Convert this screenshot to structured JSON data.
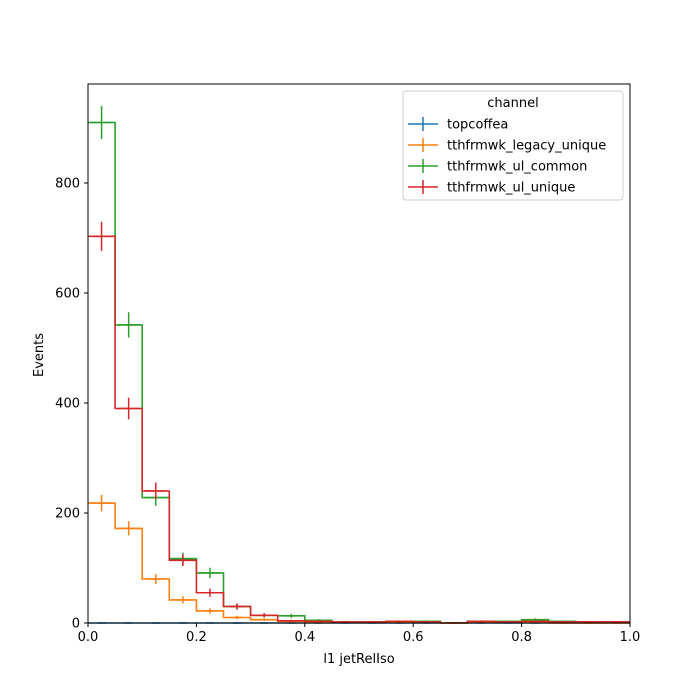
{
  "chart_data": {
    "type": "histogram",
    "title": "",
    "xlabel": "l1 jetRelIso",
    "ylabel": "Events",
    "xlim": [
      0,
      1
    ],
    "ylim": [
      0,
      980
    ],
    "bin_edges": [
      0,
      0.05,
      0.1,
      0.15,
      0.2,
      0.25,
      0.3,
      0.35,
      0.4,
      0.45,
      0.5,
      0.55,
      0.6,
      0.65,
      0.7,
      0.75,
      0.8,
      0.85,
      0.9,
      0.95,
      1.0
    ],
    "x_ticks": [
      "0.0",
      "0.2",
      "0.4",
      "0.6",
      "0.8",
      "1.0"
    ],
    "x_tick_values": [
      0,
      0.2,
      0.4,
      0.6,
      0.8,
      1.0
    ],
    "y_ticks": [
      "0",
      "200",
      "400",
      "600",
      "800"
    ],
    "y_tick_values": [
      0,
      200,
      400,
      600,
      800
    ],
    "legend": {
      "title": "channel",
      "position": "top-right"
    },
    "grid": false,
    "series": [
      {
        "name": "topcoffea",
        "color": "#1f77b4",
        "values": [
          0,
          0,
          0,
          0,
          0,
          0,
          0,
          0,
          0,
          0,
          0,
          0,
          0,
          0,
          0,
          0,
          0,
          0,
          0,
          0
        ],
        "errors": [
          0,
          0,
          0,
          0,
          0,
          0,
          0,
          0,
          0,
          0,
          0,
          0,
          0,
          0,
          0,
          0,
          0,
          0,
          0,
          0
        ]
      },
      {
        "name": "tthfrmwk_legacy_unique",
        "color": "#ff7f0e",
        "values": [
          218,
          172,
          80,
          42,
          22,
          10,
          6,
          3,
          2,
          1,
          1,
          1,
          1,
          0,
          1,
          1,
          1,
          0,
          0,
          0
        ],
        "errors": [
          15,
          13,
          9,
          6.5,
          4.7,
          3.2,
          2.4,
          1.7,
          1.4,
          1,
          1,
          1,
          1,
          0,
          1,
          1,
          1,
          0,
          0,
          0
        ]
      },
      {
        "name": "tthfrmwk_ul_common",
        "color": "#2ca02c",
        "values": [
          910,
          542,
          228,
          117,
          91,
          30,
          14,
          13,
          5,
          2,
          2,
          3,
          3,
          0,
          3,
          3,
          6,
          3,
          2,
          2
        ],
        "errors": [
          30,
          23,
          15,
          11,
          9.5,
          5.5,
          3.7,
          3.6,
          2.2,
          1.4,
          1.4,
          1.7,
          1.7,
          0,
          1.7,
          1.7,
          2.4,
          1.7,
          1.4,
          1.4
        ]
      },
      {
        "name": "tthfrmwk_ul_unique",
        "color": "#d62728",
        "values": [
          703,
          390,
          240,
          114,
          55,
          30,
          14,
          4,
          3,
          2,
          2,
          3,
          2,
          0,
          3,
          2,
          3,
          2,
          2,
          2
        ],
        "errors": [
          26.5,
          19.7,
          15.5,
          10.7,
          7.4,
          5.5,
          3.7,
          2,
          1.7,
          1.4,
          1.4,
          1.7,
          1.4,
          0,
          1.7,
          1.4,
          1.7,
          1.4,
          1.4,
          1.4
        ]
      }
    ]
  }
}
